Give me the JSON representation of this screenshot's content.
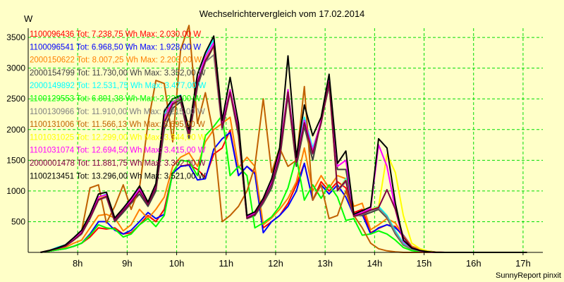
{
  "chart_data": {
    "type": "line",
    "title": "Wechselrichtervergleich vom 17.02.2014",
    "ylabel": "W",
    "xlabel": "",
    "ylim": [
      0,
      3650
    ],
    "xlim": [
      7.0,
      17.4
    ],
    "yticks": [
      500,
      1000,
      1500,
      2000,
      2500,
      3000,
      3500
    ],
    "xticks": [
      {
        "value": 8,
        "label": "8h"
      },
      {
        "value": 9,
        "label": "9h"
      },
      {
        "value": 10,
        "label": "10h"
      },
      {
        "value": 11,
        "label": "11h"
      },
      {
        "value": 12,
        "label": "12h"
      },
      {
        "value": 13,
        "label": "13h"
      },
      {
        "value": 14,
        "label": "14h"
      },
      {
        "value": 15,
        "label": "15h"
      },
      {
        "value": 16,
        "label": "16h"
      },
      {
        "value": 17,
        "label": "17h"
      }
    ],
    "grid": true,
    "legend_position": "top-left",
    "footer": "SunnyReport pinxit",
    "x": [
      7.25,
      7.42,
      7.58,
      7.75,
      7.92,
      8.08,
      8.25,
      8.42,
      8.58,
      8.75,
      8.92,
      9.08,
      9.25,
      9.42,
      9.58,
      9.75,
      9.92,
      10.08,
      10.25,
      10.42,
      10.58,
      10.75,
      10.92,
      11.08,
      11.25,
      11.42,
      11.58,
      11.75,
      11.92,
      12.08,
      12.25,
      12.42,
      12.58,
      12.75,
      12.92,
      13.08,
      13.25,
      13.42,
      13.58,
      13.75,
      13.92,
      14.08,
      14.25,
      14.42,
      14.58,
      14.75,
      14.92,
      15.08,
      15.25,
      15.42,
      15.58,
      15.75,
      15.92,
      16.08,
      16.25,
      16.42,
      16.58,
      16.75,
      16.92,
      17.08
    ],
    "series": [
      {
        "name": "1100096436 Tot: 7.238,75 Wh Max: 2.030,00 W",
        "color": "#ff0000",
        "values": [
          0,
          20,
          40,
          60,
          100,
          150,
          250,
          400,
          380,
          400,
          300,
          320,
          450,
          600,
          500,
          700,
          1300,
          1400,
          1430,
          1350,
          1220,
          1600,
          1700,
          1990,
          1250,
          1400,
          1300,
          400,
          500,
          600,
          800,
          1100,
          1450,
          850,
          1150,
          1000,
          1150,
          1050,
          650,
          700,
          320,
          390,
          450,
          420,
          250,
          90,
          40,
          15,
          2,
          0,
          0,
          0,
          0,
          0,
          0,
          0,
          0,
          0,
          0,
          0
        ]
      },
      {
        "name": "1100096541 Tot: 6.968,50 Wh Max: 1.928,00 W",
        "color": "#0000ff",
        "values": [
          0,
          20,
          40,
          60,
          100,
          150,
          300,
          500,
          500,
          360,
          300,
          360,
          500,
          650,
          550,
          620,
          1290,
          1400,
          1420,
          1180,
          1200,
          1680,
          1850,
          1950,
          1250,
          1400,
          1280,
          320,
          500,
          600,
          750,
          1000,
          1450,
          850,
          1100,
          950,
          1100,
          900,
          600,
          620,
          300,
          400,
          450,
          400,
          280,
          100,
          50,
          20,
          5,
          0,
          0,
          0,
          0,
          0,
          0,
          0,
          0,
          0,
          0,
          0
        ]
      },
      {
        "name": "2000150622 Tot: 8.007,25 Wh Max: 2.203,00 W",
        "color": "#ff8000",
        "values": [
          0,
          20,
          50,
          80,
          150,
          200,
          400,
          600,
          620,
          560,
          350,
          450,
          700,
          550,
          700,
          900,
          1400,
          1550,
          1620,
          1400,
          1800,
          2000,
          2100,
          2200,
          1380,
          1550,
          1400,
          450,
          560,
          700,
          880,
          1150,
          1700,
          1000,
          1250,
          1050,
          1250,
          1200,
          750,
          800,
          370,
          450,
          550,
          480,
          270,
          100,
          50,
          20,
          5,
          0,
          0,
          0,
          0,
          0,
          0,
          0,
          0,
          0,
          0,
          0
        ]
      },
      {
        "name": "2000154799 Tot: 11.730,00 Wh Max: 3.352,00 W",
        "color": "#404040",
        "values": [
          0,
          30,
          60,
          100,
          200,
          300,
          550,
          850,
          900,
          500,
          650,
          800,
          950,
          750,
          1000,
          2000,
          2350,
          2450,
          1860,
          2700,
          3100,
          3350,
          2000,
          2600,
          1900,
          550,
          600,
          800,
          1050,
          1500,
          2550,
          1400,
          2050,
          1500,
          2150,
          2700,
          1350,
          1350,
          600,
          600,
          650,
          700,
          560,
          300,
          120,
          50,
          20,
          5,
          0,
          0,
          0,
          0,
          0,
          0,
          0,
          0,
          0,
          0,
          0,
          0
        ]
      },
      {
        "name": "2000149892 Tot: 12.531,75 Wh Max: 3.477,00 W",
        "color": "#00ffff",
        "values": [
          0,
          30,
          80,
          120,
          220,
          320,
          600,
          900,
          950,
          550,
          700,
          850,
          1050,
          800,
          1100,
          2250,
          2500,
          2560,
          1950,
          2800,
          3200,
          3470,
          2100,
          2600,
          2000,
          600,
          650,
          850,
          1150,
          1600,
          2650,
          1500,
          2200,
          1700,
          2100,
          2800,
          1000,
          1200,
          600,
          650,
          700,
          750,
          600,
          350,
          150,
          70,
          30,
          10,
          0,
          0,
          0,
          0,
          0,
          0,
          0,
          0,
          0,
          0,
          0,
          0
        ]
      },
      {
        "name": "1100129553 Tot: 6.891,38 Wh Max: 2.228,00 W",
        "color": "#00ff00",
        "values": [
          0,
          20,
          40,
          60,
          100,
          150,
          280,
          450,
          400,
          380,
          250,
          300,
          450,
          550,
          420,
          600,
          1300,
          1500,
          1480,
          1250,
          1900,
          2050,
          2230,
          1250,
          1400,
          1250,
          400,
          480,
          580,
          750,
          1050,
          1550,
          850,
          1100,
          880,
          1100,
          900,
          520,
          550,
          280,
          300,
          350,
          300,
          200,
          80,
          30,
          10,
          2,
          0,
          0,
          0,
          0,
          0,
          0,
          0,
          0,
          0,
          0,
          0,
          0
        ]
      },
      {
        "name": "1100130966 Tot: 11.910,00 Wh Max: 3.215,00 W",
        "color": "#808080",
        "values": [
          0,
          30,
          60,
          100,
          200,
          300,
          550,
          850,
          900,
          520,
          680,
          820,
          1000,
          780,
          1050,
          2100,
          2400,
          2480,
          1900,
          2750,
          3100,
          3215,
          2000,
          2600,
          1950,
          560,
          620,
          820,
          1100,
          1550,
          2600,
          1450,
          2100,
          1600,
          2100,
          2750,
          1000,
          1150,
          580,
          620,
          680,
          720,
          580,
          320,
          130,
          55,
          25,
          8,
          0,
          0,
          0,
          0,
          0,
          0,
          0,
          0,
          0,
          0,
          0,
          0
        ]
      },
      {
        "name": "1100131006 Tot: 11.566,13 Wh Max: 3.695,00 W",
        "color": "#c06000",
        "values": [
          0,
          30,
          70,
          110,
          210,
          350,
          1050,
          1100,
          480,
          750,
          1100,
          700,
          1050,
          2100,
          2800,
          2750,
          1800,
          3300,
          3695,
          2100,
          2600,
          1900,
          500,
          600,
          750,
          1000,
          1400,
          2500,
          1300,
          1700,
          1400,
          1500,
          2700,
          850,
          1100,
          550,
          600,
          1000,
          600,
          400,
          150,
          60,
          25,
          8,
          0,
          0,
          0,
          0,
          0,
          0,
          0,
          0,
          0,
          0,
          0,
          0,
          0,
          0,
          0,
          0
        ]
      },
      {
        "name": "1101031025 Tot: 12.299,00 Wh Max: 3.344,00 W",
        "color": "#ffff00",
        "values": [
          0,
          30,
          60,
          100,
          210,
          320,
          580,
          880,
          920,
          530,
          690,
          830,
          1010,
          790,
          1060,
          2150,
          2430,
          2500,
          1920,
          2780,
          3150,
          3344,
          2050,
          2620,
          1980,
          570,
          630,
          840,
          1120,
          1580,
          2620,
          1470,
          2120,
          1620,
          2120,
          2780,
          1020,
          1180,
          590,
          640,
          700,
          740,
          1600,
          1300,
          600,
          150,
          60,
          20,
          0,
          0,
          0,
          0,
          0,
          0,
          0,
          0,
          0,
          0,
          0,
          0
        ]
      },
      {
        "name": "1101031074 Tot: 12.694,50 Wh Max: 3.415,00 W",
        "color": "#ff00ff",
        "values": [
          0,
          30,
          70,
          110,
          230,
          340,
          600,
          900,
          940,
          540,
          700,
          850,
          1030,
          800,
          1080,
          2200,
          2450,
          2520,
          1950,
          2800,
          3180,
          3415,
          2080,
          2650,
          2000,
          580,
          640,
          860,
          1150,
          1620,
          2650,
          1500,
          2150,
          1650,
          2150,
          2800,
          1400,
          1500,
          600,
          650,
          710,
          1750,
          1400,
          700,
          180,
          70,
          25,
          5,
          0,
          0,
          0,
          0,
          0,
          0,
          0,
          0,
          0,
          0,
          0,
          0
        ]
      },
      {
        "name": "2000001478 Tot: 11.881,75 Wh Max: 3.362,00 W",
        "color": "#800040",
        "values": [
          0,
          30,
          60,
          100,
          200,
          310,
          560,
          860,
          910,
          520,
          680,
          820,
          1000,
          780,
          1050,
          2120,
          2420,
          2490,
          1910,
          2760,
          3120,
          3362,
          2030,
          2610,
          1960,
          560,
          620,
          830,
          1110,
          1560,
          2610,
          1460,
          2110,
          1610,
          2110,
          2770,
          1010,
          1170,
          590,
          630,
          690,
          730,
          1020,
          700,
          250,
          80,
          30,
          10,
          0,
          0,
          0,
          0,
          0,
          0,
          0,
          0,
          0,
          0,
          0,
          0
        ]
      },
      {
        "name": "1100213451 Tot: 13.296,00 Wh Max: 3.521,00 W",
        "color": "#000000",
        "values": [
          0,
          30,
          70,
          120,
          240,
          360,
          620,
          950,
          980,
          560,
          720,
          880,
          1080,
          820,
          1120,
          2300,
          2500,
          2550,
          2000,
          2900,
          3250,
          3521,
          2150,
          2850,
          2100,
          600,
          660,
          880,
          1200,
          1700,
          3200,
          1550,
          2400,
          1900,
          2200,
          2900,
          1450,
          1650,
          620,
          680,
          740,
          1850,
          1700,
          800,
          200,
          70,
          30,
          10,
          0,
          0,
          0,
          0,
          0,
          0,
          0,
          0,
          0,
          0,
          0,
          0
        ]
      }
    ]
  }
}
